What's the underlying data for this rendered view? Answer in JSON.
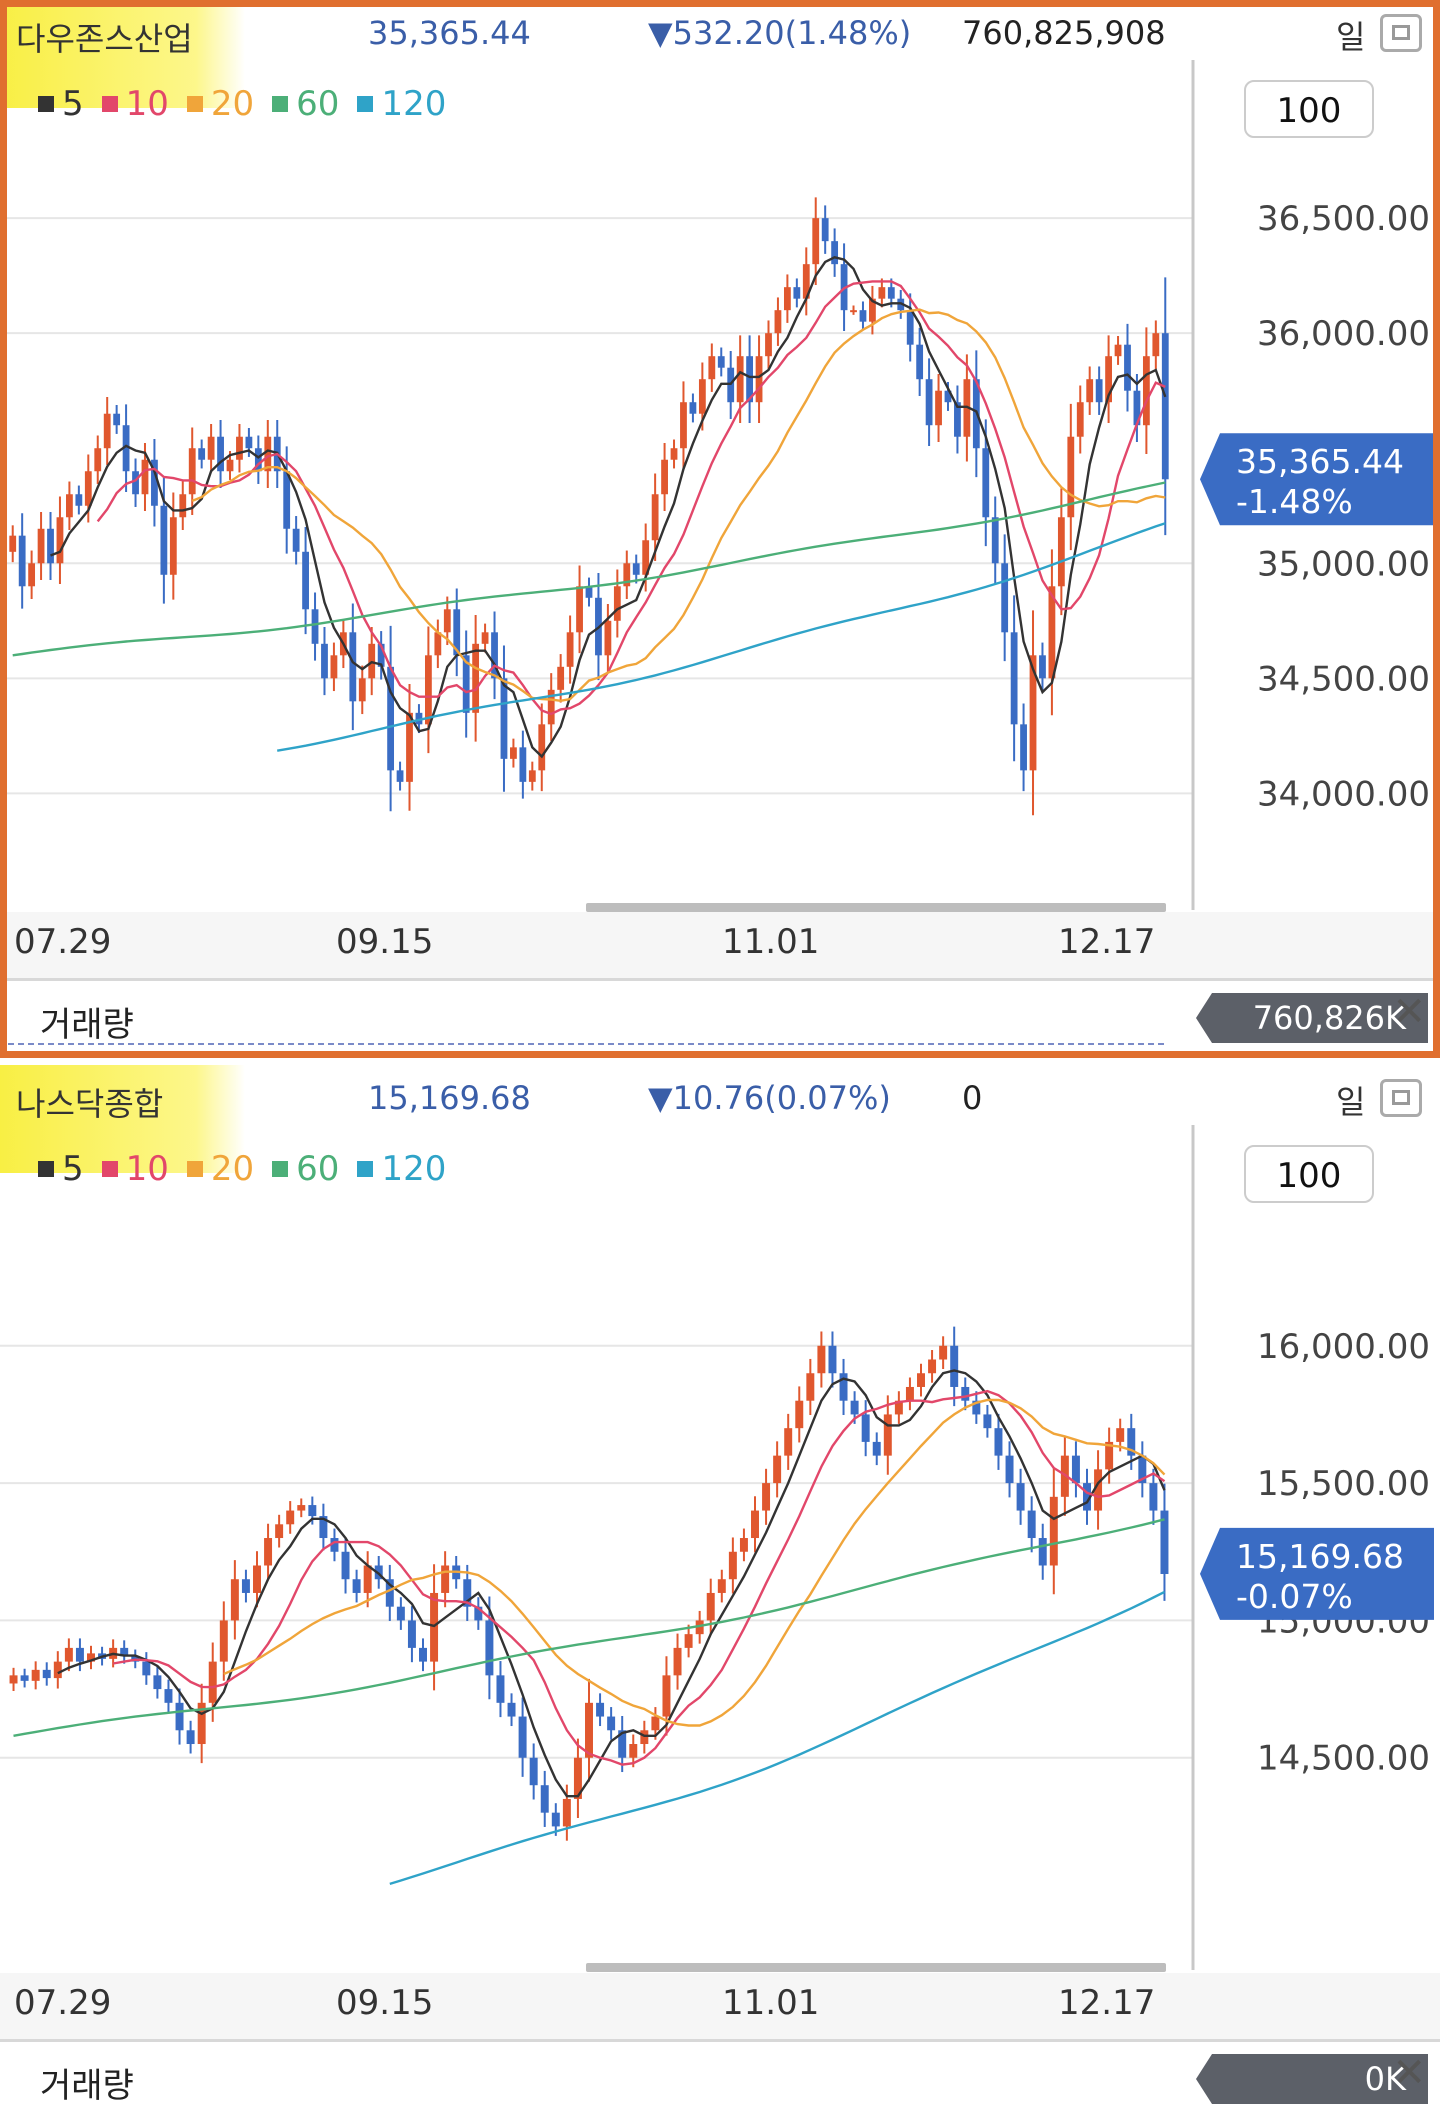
{
  "legend": [
    {
      "label": "5",
      "color": "#333333"
    },
    {
      "label": "10",
      "color": "#e2476a"
    },
    {
      "label": "20",
      "color": "#f0a53a"
    },
    {
      "label": "60",
      "color": "#4caf78"
    },
    {
      "label": "120",
      "color": "#2fa3c8"
    }
  ],
  "x_ticks": [
    "07.29",
    "09.15",
    "11.01",
    "12.17"
  ],
  "period": "일",
  "zoom": "100",
  "volume_label": "거래량",
  "colors": {
    "up": "#e0572e",
    "down": "#3a6cc4",
    "frame": "#e06f2f",
    "price_badge": "#3a6cc4"
  },
  "panels": [
    {
      "name": "다우존스산업",
      "price": "35,365.44",
      "change": "▼532.20(1.48%)",
      "volume": "760,825,908",
      "badge_price": "35,365.44",
      "badge_change": "-1.48%",
      "volume_badge": "760,826K",
      "chart_data": {
        "type": "candlestick",
        "y_ticks": [
          "36,500.00",
          "36,000.00",
          "35,000.00",
          "34,500.00",
          "34,000.00"
        ],
        "y_tick_values": [
          36500,
          36000,
          35000,
          34500,
          34000
        ],
        "ylim": [
          33580,
          36970
        ],
        "last": 35365.44,
        "closes": [
          35120,
          34900,
          35000,
          35150,
          35000,
          35200,
          35300,
          35250,
          35400,
          35500,
          35650,
          35600,
          35400,
          35300,
          35450,
          35250,
          34950,
          35200,
          35300,
          35500,
          35450,
          35550,
          35400,
          35450,
          35550,
          35500,
          35400,
          35550,
          35400,
          35150,
          35050,
          34800,
          34650,
          34500,
          34600,
          34700,
          34400,
          34500,
          34650,
          34550,
          34100,
          34050,
          34350,
          34300,
          34600,
          34700,
          34800,
          34600,
          34350,
          34650,
          34700,
          34500,
          34150,
          34200,
          34050,
          34100,
          34300,
          34450,
          34550,
          34700,
          34900,
          34850,
          34600,
          34750,
          34900,
          35000,
          34950,
          35100,
          35300,
          35450,
          35500,
          35700,
          35650,
          35800,
          35900,
          35850,
          35700,
          35900,
          35700,
          35900,
          36000,
          36100,
          36200,
          36150,
          36300,
          36500,
          36400,
          36300,
          36100,
          36100,
          36050,
          36150,
          36200,
          36150,
          36100,
          35950,
          35800,
          35600,
          35750,
          35700,
          35550,
          35800,
          35500,
          35200,
          35000,
          34700,
          34300,
          34100,
          34600,
          34500,
          34900,
          35200,
          35550,
          35700,
          35800,
          35700,
          35900,
          35950,
          35750,
          35600,
          35900,
          36000,
          35365
        ],
        "sma60": {
          "start": 0,
          "from": 34600,
          "to": 35340
        },
        "sma120": {
          "start": 28,
          "from": 34200,
          "to": 35160
        }
      }
    },
    {
      "name": "나스닥종합",
      "price": "15,169.68",
      "change": "▼10.76(0.07%)",
      "volume": "0",
      "badge_price": "15,169.68",
      "badge_change": "-0.07%",
      "volume_badge": "0K",
      "chart_data": {
        "type": "candlestick",
        "y_ticks": [
          "16,000.00",
          "15,500.00",
          "15,000.00",
          "14,500.00"
        ],
        "y_tick_values": [
          16000,
          15500,
          15000,
          14500
        ],
        "ylim": [
          13800,
          16640
        ],
        "last": 15169.68,
        "closes": [
          14800,
          14780,
          14820,
          14790,
          14850,
          14900,
          14850,
          14880,
          14860,
          14900,
          14870,
          14850,
          14800,
          14750,
          14700,
          14600,
          14550,
          14700,
          14850,
          15000,
          15150,
          15100,
          15200,
          15300,
          15350,
          15400,
          15420,
          15380,
          15300,
          15250,
          15150,
          15100,
          15200,
          15150,
          15050,
          15000,
          14900,
          14850,
          15100,
          15200,
          15150,
          15050,
          15000,
          14800,
          14700,
          14650,
          14500,
          14400,
          14300,
          14250,
          14350,
          14500,
          14700,
          14650,
          14600,
          14500,
          14550,
          14600,
          14650,
          14800,
          14900,
          14950,
          15000,
          15100,
          15150,
          15250,
          15300,
          15400,
          15500,
          15600,
          15700,
          15800,
          15900,
          16000,
          15900,
          15800,
          15750,
          15650,
          15600,
          15750,
          15800,
          15850,
          15900,
          15950,
          16000,
          15850,
          15800,
          15750,
          15700,
          15600,
          15500,
          15400,
          15300,
          15200,
          15450,
          15600,
          15500,
          15400,
          15550,
          15650,
          15700,
          15600,
          15500,
          15400,
          15169
        ],
        "sma60": {
          "start": 0,
          "from": 14580,
          "to": 15380
        },
        "sma120": {
          "start": 34,
          "from": 14050,
          "to": 15120
        }
      }
    }
  ]
}
